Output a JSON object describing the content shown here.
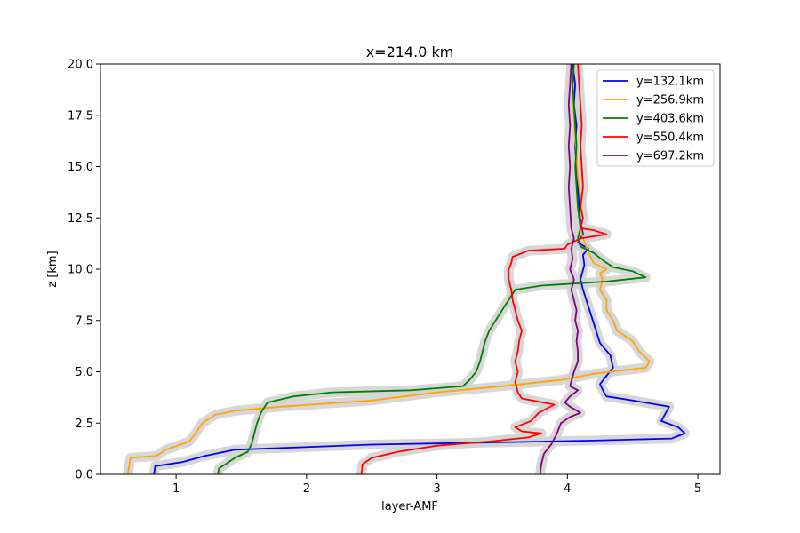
{
  "chart_data": {
    "type": "line",
    "title": "x=214.0 km",
    "xlabel": "layer-AMF",
    "ylabel": "z [km]",
    "xlim": [
      0.42,
      5.17
    ],
    "ylim": [
      0,
      20
    ],
    "xticks": [
      "1",
      "2",
      "3",
      "4",
      "5"
    ],
    "xtick_values": [
      1,
      2,
      3,
      4,
      5
    ],
    "yticks": [
      "0.0",
      "2.5",
      "5.0",
      "7.5",
      "10.0",
      "12.5",
      "15.0",
      "17.5",
      "20.0"
    ],
    "ytick_values": [
      0,
      2.5,
      5,
      7.5,
      10,
      12.5,
      15,
      17.5,
      20
    ],
    "grid": false,
    "legend_position": "top-right",
    "uncertainty_band_color": "#d3d3d3",
    "series": [
      {
        "name": "y=132.1km",
        "color": "#0000ff",
        "points": [
          [
            0.83,
            0
          ],
          [
            0.84,
            0.4
          ],
          [
            1.05,
            0.6
          ],
          [
            1.22,
            0.9
          ],
          [
            1.45,
            1.2
          ],
          [
            2.5,
            1.45
          ],
          [
            4.2,
            1.65
          ],
          [
            4.8,
            1.75
          ],
          [
            4.9,
            2.0
          ],
          [
            4.85,
            2.3
          ],
          [
            4.72,
            2.6
          ],
          [
            4.78,
            3.3
          ],
          [
            4.5,
            3.6
          ],
          [
            4.3,
            3.8
          ],
          [
            4.28,
            4.0
          ],
          [
            4.25,
            4.4
          ],
          [
            4.3,
            4.8
          ],
          [
            4.35,
            5.2
          ],
          [
            4.33,
            5.8
          ],
          [
            4.25,
            6.4
          ],
          [
            4.22,
            7.0
          ],
          [
            4.18,
            7.8
          ],
          [
            4.15,
            8.4
          ],
          [
            4.12,
            9.0
          ],
          [
            4.1,
            9.5
          ],
          [
            4.13,
            10.2
          ],
          [
            4.12,
            10.7
          ],
          [
            4.16,
            11.0
          ],
          [
            4.08,
            11.3
          ],
          [
            4.12,
            11.7
          ],
          [
            4.1,
            12.3
          ],
          [
            4.09,
            13.0
          ],
          [
            4.08,
            14.0
          ],
          [
            4.07,
            15.0
          ],
          [
            4.06,
            16.0
          ],
          [
            4.07,
            17.0
          ],
          [
            4.05,
            18.0
          ],
          [
            4.06,
            19.0
          ],
          [
            4.04,
            20.0
          ]
        ]
      },
      {
        "name": "y=256.9km",
        "color": "#ffa500",
        "points": [
          [
            0.63,
            0
          ],
          [
            0.65,
            0.8
          ],
          [
            0.85,
            0.9
          ],
          [
            0.92,
            1.2
          ],
          [
            1.1,
            1.6
          ],
          [
            1.15,
            2.0
          ],
          [
            1.2,
            2.5
          ],
          [
            1.3,
            2.9
          ],
          [
            1.45,
            3.1
          ],
          [
            1.8,
            3.3
          ],
          [
            2.5,
            3.6
          ],
          [
            3.0,
            4.0
          ],
          [
            3.5,
            4.3
          ],
          [
            3.95,
            4.6
          ],
          [
            4.2,
            4.9
          ],
          [
            4.6,
            5.2
          ],
          [
            4.63,
            5.5
          ],
          [
            4.55,
            6.0
          ],
          [
            4.5,
            6.5
          ],
          [
            4.38,
            7.0
          ],
          [
            4.35,
            7.5
          ],
          [
            4.3,
            8.0
          ],
          [
            4.3,
            8.5
          ],
          [
            4.25,
            9.0
          ],
          [
            4.27,
            9.5
          ],
          [
            4.25,
            9.8
          ],
          [
            4.3,
            10.0
          ],
          [
            4.2,
            10.3
          ],
          [
            4.15,
            11.0
          ],
          [
            4.12,
            11.5
          ],
          [
            4.1,
            12.0
          ],
          [
            4.12,
            12.5
          ],
          [
            4.1,
            13.5
          ],
          [
            4.08,
            14.5
          ],
          [
            4.07,
            15.5
          ],
          [
            4.06,
            16.5
          ],
          [
            4.05,
            17.5
          ],
          [
            4.04,
            18.5
          ],
          [
            4.03,
            20.0
          ]
        ]
      },
      {
        "name": "y=403.6km",
        "color": "#008000",
        "points": [
          [
            1.32,
            0
          ],
          [
            1.33,
            0.3
          ],
          [
            1.38,
            0.5
          ],
          [
            1.45,
            0.8
          ],
          [
            1.55,
            1.1
          ],
          [
            1.58,
            1.5
          ],
          [
            1.6,
            2.0
          ],
          [
            1.62,
            2.5
          ],
          [
            1.65,
            3.0
          ],
          [
            1.7,
            3.5
          ],
          [
            1.9,
            3.8
          ],
          [
            2.2,
            4.0
          ],
          [
            2.8,
            4.1
          ],
          [
            3.2,
            4.3
          ],
          [
            3.25,
            4.6
          ],
          [
            3.3,
            5.0
          ],
          [
            3.33,
            5.5
          ],
          [
            3.35,
            6.0
          ],
          [
            3.37,
            6.5
          ],
          [
            3.4,
            7.0
          ],
          [
            3.45,
            7.5
          ],
          [
            3.5,
            8.0
          ],
          [
            3.55,
            8.5
          ],
          [
            3.6,
            9.0
          ],
          [
            3.8,
            9.2
          ],
          [
            4.3,
            9.4
          ],
          [
            4.6,
            9.6
          ],
          [
            4.5,
            9.9
          ],
          [
            4.35,
            10.1
          ],
          [
            4.28,
            10.4
          ],
          [
            4.2,
            10.8
          ],
          [
            4.1,
            11.1
          ],
          [
            4.08,
            11.5
          ],
          [
            4.1,
            12.0
          ],
          [
            4.08,
            13.0
          ],
          [
            4.07,
            14.0
          ],
          [
            4.06,
            15.0
          ],
          [
            4.07,
            16.0
          ],
          [
            4.06,
            17.0
          ],
          [
            4.05,
            18.0
          ],
          [
            4.04,
            19.0
          ],
          [
            4.05,
            20.0
          ]
        ]
      },
      {
        "name": "y=550.4km",
        "color": "#ff0000",
        "points": [
          [
            2.42,
            0
          ],
          [
            2.43,
            0.5
          ],
          [
            2.5,
            0.8
          ],
          [
            2.7,
            1.1
          ],
          [
            3.0,
            1.4
          ],
          [
            3.4,
            1.6
          ],
          [
            3.7,
            1.8
          ],
          [
            3.8,
            2.0
          ],
          [
            3.65,
            2.1
          ],
          [
            3.6,
            2.3
          ],
          [
            3.72,
            2.6
          ],
          [
            3.78,
            3.0
          ],
          [
            3.9,
            3.4
          ],
          [
            3.65,
            3.7
          ],
          [
            3.62,
            4.0
          ],
          [
            3.6,
            4.5
          ],
          [
            3.62,
            5.0
          ],
          [
            3.6,
            5.5
          ],
          [
            3.62,
            6.0
          ],
          [
            3.63,
            6.5
          ],
          [
            3.65,
            7.0
          ],
          [
            3.62,
            7.5
          ],
          [
            3.6,
            8.0
          ],
          [
            3.58,
            8.5
          ],
          [
            3.57,
            9.0
          ],
          [
            3.55,
            9.5
          ],
          [
            3.55,
            10.0
          ],
          [
            3.57,
            10.3
          ],
          [
            3.58,
            10.6
          ],
          [
            3.7,
            10.9
          ],
          [
            3.98,
            11.0
          ],
          [
            4.0,
            11.2
          ],
          [
            4.1,
            11.5
          ],
          [
            4.3,
            11.7
          ],
          [
            4.2,
            11.9
          ],
          [
            4.1,
            12.0
          ],
          [
            4.12,
            12.5
          ],
          [
            4.1,
            13.0
          ],
          [
            4.12,
            14.0
          ],
          [
            4.11,
            15.0
          ],
          [
            4.1,
            16.0
          ],
          [
            4.11,
            17.0
          ],
          [
            4.1,
            18.0
          ],
          [
            4.09,
            19.0
          ],
          [
            4.08,
            20.0
          ]
        ]
      },
      {
        "name": "y=697.2km",
        "color": "#800080",
        "points": [
          [
            3.79,
            0
          ],
          [
            3.8,
            0.5
          ],
          [
            3.82,
            1.0
          ],
          [
            3.88,
            1.5
          ],
          [
            3.92,
            2.0
          ],
          [
            3.95,
            2.5
          ],
          [
            4.02,
            2.8
          ],
          [
            4.1,
            3.0
          ],
          [
            4.02,
            3.3
          ],
          [
            3.98,
            3.5
          ],
          [
            4.02,
            3.8
          ],
          [
            4.08,
            4.1
          ],
          [
            4.02,
            4.3
          ],
          [
            4.05,
            5.0
          ],
          [
            4.08,
            5.5
          ],
          [
            4.08,
            6.0
          ],
          [
            4.07,
            6.5
          ],
          [
            4.08,
            7.0
          ],
          [
            4.06,
            7.5
          ],
          [
            4.07,
            8.0
          ],
          [
            4.05,
            8.5
          ],
          [
            4.03,
            9.0
          ],
          [
            4.05,
            9.5
          ],
          [
            4.02,
            10.0
          ],
          [
            4.04,
            10.5
          ],
          [
            4.03,
            11.0
          ],
          [
            4.05,
            11.5
          ],
          [
            4.03,
            12.0
          ],
          [
            4.02,
            13.0
          ],
          [
            4.01,
            14.0
          ],
          [
            4.02,
            15.0
          ],
          [
            4.01,
            16.0
          ],
          [
            4.02,
            17.0
          ],
          [
            4.01,
            18.0
          ],
          [
            4.02,
            19.0
          ],
          [
            4.03,
            20.0
          ]
        ]
      }
    ]
  }
}
